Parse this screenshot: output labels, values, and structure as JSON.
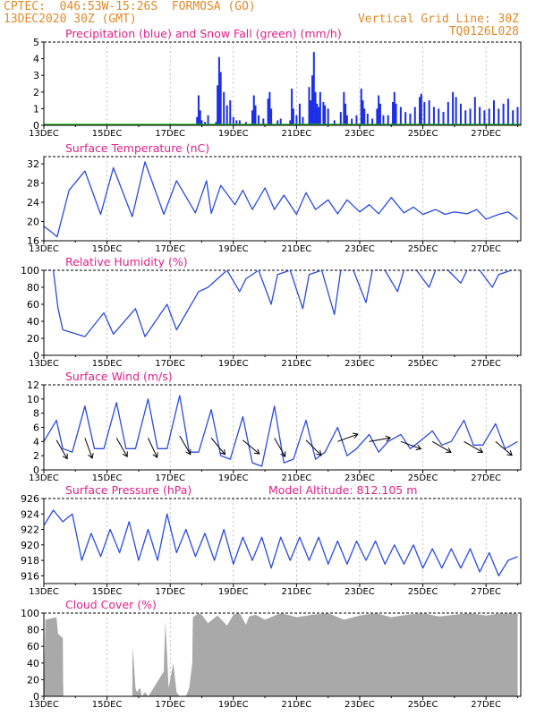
{
  "header": {
    "line1": "CPTEC:  046:53W-15:26S  FORMOSA (GO)",
    "line2": "13DEC2020 30Z (GMT)",
    "grid_note": "Vertical Grid Line: 30Z",
    "run_id": "TQ0126L028",
    "model_altitude": "Model Altitude: 812.105 m"
  },
  "colors": {
    "title": "#e0218a",
    "header": "#e08a2a",
    "precip": "#1c2ee6",
    "snow": "#22b022",
    "line": "#2a4be0",
    "wind_arrow": "#000000",
    "cloud": "#a9a9a9"
  },
  "x_axis": {
    "tick_labels": [
      "13DEC",
      "15DEC",
      "17DEC",
      "19DEC",
      "21DEC",
      "23DEC",
      "25DEC",
      "27DEC"
    ],
    "tick_days": [
      0,
      2,
      4,
      6,
      8,
      10,
      12,
      14
    ],
    "range_days": [
      0,
      15.1
    ]
  },
  "chart_data": [
    {
      "type": "bar",
      "title": "Precipitation (blue) and Snow Fall (green) (mm/h)",
      "ylim": [
        0,
        5
      ],
      "yticks": [
        0,
        1,
        2,
        3,
        4,
        5
      ],
      "series": [
        {
          "name": "Precipitation",
          "points": [
            [
              4.85,
              0.5
            ],
            [
              4.9,
              1.8
            ],
            [
              4.95,
              0.9
            ],
            [
              5.0,
              0.3
            ],
            [
              5.1,
              0.2
            ],
            [
              5.2,
              0.6
            ],
            [
              5.45,
              0.2
            ],
            [
              5.5,
              2.4
            ],
            [
              5.55,
              4.1
            ],
            [
              5.6,
              3.2
            ],
            [
              5.7,
              2.0
            ],
            [
              5.8,
              1.2
            ],
            [
              5.9,
              1.5
            ],
            [
              6.0,
              0.5
            ],
            [
              6.1,
              0.3
            ],
            [
              6.2,
              0.3
            ],
            [
              6.4,
              0.2
            ],
            [
              6.6,
              0.9
            ],
            [
              6.65,
              1.8
            ],
            [
              6.7,
              1.2
            ],
            [
              6.8,
              0.6
            ],
            [
              6.95,
              0.4
            ],
            [
              7.1,
              1.6
            ],
            [
              7.15,
              2.0
            ],
            [
              7.2,
              1.0
            ],
            [
              7.4,
              0.3
            ],
            [
              7.5,
              0.4
            ],
            [
              7.8,
              0.3
            ],
            [
              7.85,
              2.2
            ],
            [
              7.9,
              1.0
            ],
            [
              8.0,
              0.6
            ],
            [
              8.1,
              1.3
            ],
            [
              8.2,
              0.5
            ],
            [
              8.4,
              2.3
            ],
            [
              8.45,
              1.5
            ],
            [
              8.5,
              3.0
            ],
            [
              8.55,
              4.4
            ],
            [
              8.6,
              2.0
            ],
            [
              8.65,
              1.3
            ],
            [
              8.7,
              1.1
            ],
            [
              8.75,
              2.0
            ],
            [
              8.85,
              1.4
            ],
            [
              8.9,
              1.2
            ],
            [
              9.0,
              1.0
            ],
            [
              9.2,
              0.3
            ],
            [
              9.4,
              0.8
            ],
            [
              9.5,
              2.0
            ],
            [
              9.55,
              1.3
            ],
            [
              9.6,
              0.6
            ],
            [
              9.75,
              0.4
            ],
            [
              9.9,
              0.6
            ],
            [
              10.05,
              2.2
            ],
            [
              10.1,
              1.5
            ],
            [
              10.15,
              1.0
            ],
            [
              10.25,
              0.7
            ],
            [
              10.4,
              0.4
            ],
            [
              10.55,
              1.0
            ],
            [
              10.6,
              1.8
            ],
            [
              10.65,
              1.3
            ],
            [
              10.75,
              0.6
            ],
            [
              10.9,
              0.6
            ],
            [
              11.05,
              1.4
            ],
            [
              11.1,
              2.0
            ],
            [
              11.15,
              1.3
            ],
            [
              11.3,
              1.1
            ],
            [
              11.45,
              0.8
            ],
            [
              11.6,
              0.7
            ],
            [
              11.75,
              1.1
            ],
            [
              11.9,
              1.7
            ],
            [
              11.95,
              1.9
            ],
            [
              12.05,
              1.4
            ],
            [
              12.2,
              1.5
            ],
            [
              12.35,
              1.1
            ],
            [
              12.5,
              1.0
            ],
            [
              12.65,
              0.8
            ],
            [
              12.8,
              1.4
            ],
            [
              12.95,
              2.0
            ],
            [
              13.05,
              1.7
            ],
            [
              13.2,
              1.3
            ],
            [
              13.35,
              0.9
            ],
            [
              13.5,
              1.0
            ],
            [
              13.65,
              1.7
            ],
            [
              13.8,
              1.1
            ],
            [
              13.95,
              0.9
            ],
            [
              14.1,
              1.0
            ],
            [
              14.25,
              1.5
            ],
            [
              14.4,
              1.0
            ],
            [
              14.55,
              1.3
            ],
            [
              14.7,
              1.6
            ],
            [
              14.85,
              0.9
            ],
            [
              15.0,
              1.1
            ]
          ]
        },
        {
          "name": "Snow Fall",
          "values": [
            0
          ]
        }
      ]
    },
    {
      "type": "line",
      "title": "Surface Temperature (nC)",
      "ylim": [
        16,
        33.5
      ],
      "yticks": [
        16,
        20,
        24,
        28,
        32
      ],
      "x": [
        0,
        0.3,
        0.42,
        0.8,
        1.3,
        1.8,
        2.2,
        2.8,
        3.2,
        3.8,
        4.2,
        4.8,
        5.15,
        5.3,
        5.6,
        6.05,
        6.3,
        6.6,
        7.0,
        7.3,
        7.6,
        8.0,
        8.3,
        8.6,
        9.0,
        9.3,
        9.6,
        10.0,
        10.3,
        10.6,
        11.0,
        11.4,
        11.7,
        12.0,
        12.4,
        12.7,
        13.0,
        13.4,
        13.7,
        14.0,
        14.4,
        14.7,
        15.0
      ],
      "y": [
        19,
        17.5,
        16.8,
        26.5,
        30.5,
        21.5,
        31.2,
        21,
        32.4,
        21.5,
        28.5,
        21.8,
        28.5,
        21.7,
        27.5,
        23.5,
        26.5,
        22.5,
        27,
        22.5,
        25.5,
        21.5,
        26,
        22.5,
        24.5,
        21.6,
        24.5,
        22,
        23.5,
        21.6,
        25,
        21.8,
        23,
        21.5,
        22.5,
        21.5,
        22,
        21.6,
        22.5,
        20.5,
        21.5,
        22,
        20.5
      ]
    },
    {
      "type": "line",
      "title": "Relative Humidity (%)",
      "ylim": [
        0,
        100
      ],
      "yticks": [
        0,
        20,
        40,
        60,
        80,
        100
      ],
      "x": [
        0,
        0.3,
        0.45,
        0.6,
        1.3,
        1.9,
        2.2,
        2.9,
        3.2,
        3.9,
        4.2,
        4.9,
        5.2,
        5.5,
        5.8,
        6.2,
        6.4,
        6.8,
        7.2,
        7.4,
        7.8,
        8.2,
        8.4,
        8.8,
        9.2,
        9.4,
        9.8,
        10.2,
        10.4,
        10.8,
        11.2,
        11.4,
        11.8,
        12.2,
        12.4,
        12.8,
        13.2,
        13.4,
        13.8,
        14.2,
        14.4,
        14.8,
        15.0
      ],
      "y": [
        100,
        100,
        55,
        30,
        22,
        50,
        25,
        55,
        22,
        60,
        30,
        75,
        80,
        90,
        100,
        75,
        90,
        100,
        60,
        95,
        100,
        55,
        95,
        100,
        48,
        100,
        100,
        62,
        100,
        100,
        75,
        100,
        100,
        80,
        100,
        100,
        85,
        100,
        100,
        80,
        95,
        100,
        100
      ]
    },
    {
      "type": "line",
      "title": "Surface Wind (m/s)",
      "ylim": [
        0,
        12
      ],
      "yticks": [
        0,
        2,
        4,
        6,
        8,
        10,
        12
      ],
      "x": [
        0,
        0.4,
        0.6,
        0.9,
        1.3,
        1.6,
        1.9,
        2.3,
        2.6,
        2.9,
        3.3,
        3.6,
        3.9,
        4.3,
        4.6,
        4.9,
        5.3,
        5.6,
        5.9,
        6.3,
        6.6,
        6.9,
        7.3,
        7.6,
        7.9,
        8.3,
        8.6,
        8.9,
        9.3,
        9.6,
        9.9,
        10.3,
        10.6,
        10.9,
        11.3,
        11.6,
        11.9,
        12.3,
        12.6,
        12.9,
        13.3,
        13.6,
        13.9,
        14.3,
        14.6,
        15.0
      ],
      "y": [
        4,
        7,
        3,
        2.5,
        9,
        3,
        3,
        9.5,
        3,
        3,
        10,
        3,
        3,
        10.5,
        2.5,
        2.5,
        8.5,
        2,
        1.5,
        7.5,
        1,
        0.5,
        9,
        1,
        1.5,
        7,
        1.5,
        2.5,
        6,
        2,
        3,
        5,
        2.5,
        4,
        5,
        3,
        4,
        5.5,
        3.5,
        4,
        7,
        3.5,
        3.5,
        6.5,
        3,
        4
      ],
      "arrows": [
        [
          0.4,
          4.2,
          -60
        ],
        [
          1.3,
          4.5,
          -70
        ],
        [
          2.3,
          4.5,
          -60
        ],
        [
          3.3,
          4.5,
          -65
        ],
        [
          4.3,
          4.8,
          -60
        ],
        [
          5.3,
          4.5,
          -50
        ],
        [
          6.3,
          4.2,
          -40
        ],
        [
          7.3,
          4.5,
          -60
        ],
        [
          8.3,
          4.2,
          -45
        ],
        [
          9.3,
          4.0,
          20
        ],
        [
          10.3,
          4.0,
          10
        ],
        [
          11.3,
          4.0,
          -20
        ],
        [
          12.3,
          4.0,
          -30
        ],
        [
          13.3,
          4.0,
          -30
        ],
        [
          14.3,
          4.0,
          -40
        ]
      ]
    },
    {
      "type": "line",
      "title": "Surface Pressure (hPa)",
      "ylim": [
        915,
        926
      ],
      "yticks": [
        916,
        918,
        920,
        922,
        924,
        926
      ],
      "x": [
        0,
        0.3,
        0.6,
        0.9,
        1.2,
        1.5,
        1.8,
        2.1,
        2.4,
        2.7,
        3.0,
        3.3,
        3.6,
        3.9,
        4.2,
        4.5,
        4.8,
        5.1,
        5.4,
        5.7,
        6.0,
        6.3,
        6.6,
        6.9,
        7.2,
        7.5,
        7.8,
        8.1,
        8.4,
        8.7,
        9.0,
        9.3,
        9.6,
        9.9,
        10.2,
        10.5,
        10.8,
        11.1,
        11.4,
        11.7,
        12.0,
        12.3,
        12.6,
        12.9,
        13.2,
        13.5,
        13.8,
        14.1,
        14.4,
        14.7,
        15.0
      ],
      "y": [
        922.5,
        924.5,
        923,
        924,
        918,
        921.5,
        918.5,
        922,
        919,
        923,
        918,
        922,
        918,
        924,
        919,
        922,
        918.5,
        921.5,
        918,
        922,
        917.5,
        921,
        918,
        921,
        917,
        921,
        918,
        921,
        918,
        921,
        917.5,
        920.5,
        917.5,
        920.5,
        918,
        920.5,
        917.5,
        920,
        917.5,
        920,
        917,
        919.5,
        917,
        919.5,
        917,
        919.5,
        916.5,
        919,
        916,
        918,
        918.5
      ]
    },
    {
      "type": "area",
      "title": "Cloud Cover (%)",
      "ylim": [
        0,
        100
      ],
      "yticks": [
        0,
        20,
        40,
        60,
        80,
        100
      ],
      "x": [
        0,
        0.05,
        0.06,
        0.4,
        0.45,
        0.6,
        0.61,
        0.62,
        2.8,
        2.81,
        2.85,
        2.9,
        2.95,
        3.0,
        3.05,
        3.1,
        3.2,
        3.3,
        3.31,
        3.8,
        3.81,
        3.85,
        3.9,
        3.95,
        4.0,
        4.1,
        4.2,
        4.3,
        4.5,
        4.6,
        4.7,
        4.71,
        4.72,
        4.9,
        5.0,
        5.2,
        5.5,
        5.8,
        6.0,
        6.2,
        6.4,
        6.5,
        6.7,
        7.0,
        7.5,
        8.0,
        8.5,
        9.0,
        9.5,
        10.0,
        10.5,
        11.0,
        11.5,
        12.0,
        12.5,
        13.0,
        13.5,
        14.0,
        14.5,
        15.0
      ],
      "y": [
        0,
        95,
        92,
        95,
        75,
        70,
        20,
        0,
        0,
        60,
        40,
        10,
        5,
        8,
        10,
        0,
        5,
        0,
        0,
        30,
        50,
        90,
        50,
        10,
        20,
        40,
        5,
        0,
        0,
        10,
        40,
        80,
        95,
        100,
        98,
        88,
        97,
        85,
        98,
        100,
        86,
        96,
        98,
        92,
        100,
        95,
        98,
        100,
        92,
        97,
        100,
        95,
        98,
        100,
        96,
        98,
        100,
        97,
        100,
        100
      ]
    }
  ],
  "panel_names": [
    "precipitation-panel",
    "temperature-panel",
    "humidity-panel",
    "wind-panel",
    "pressure-panel",
    "cloud-panel"
  ]
}
